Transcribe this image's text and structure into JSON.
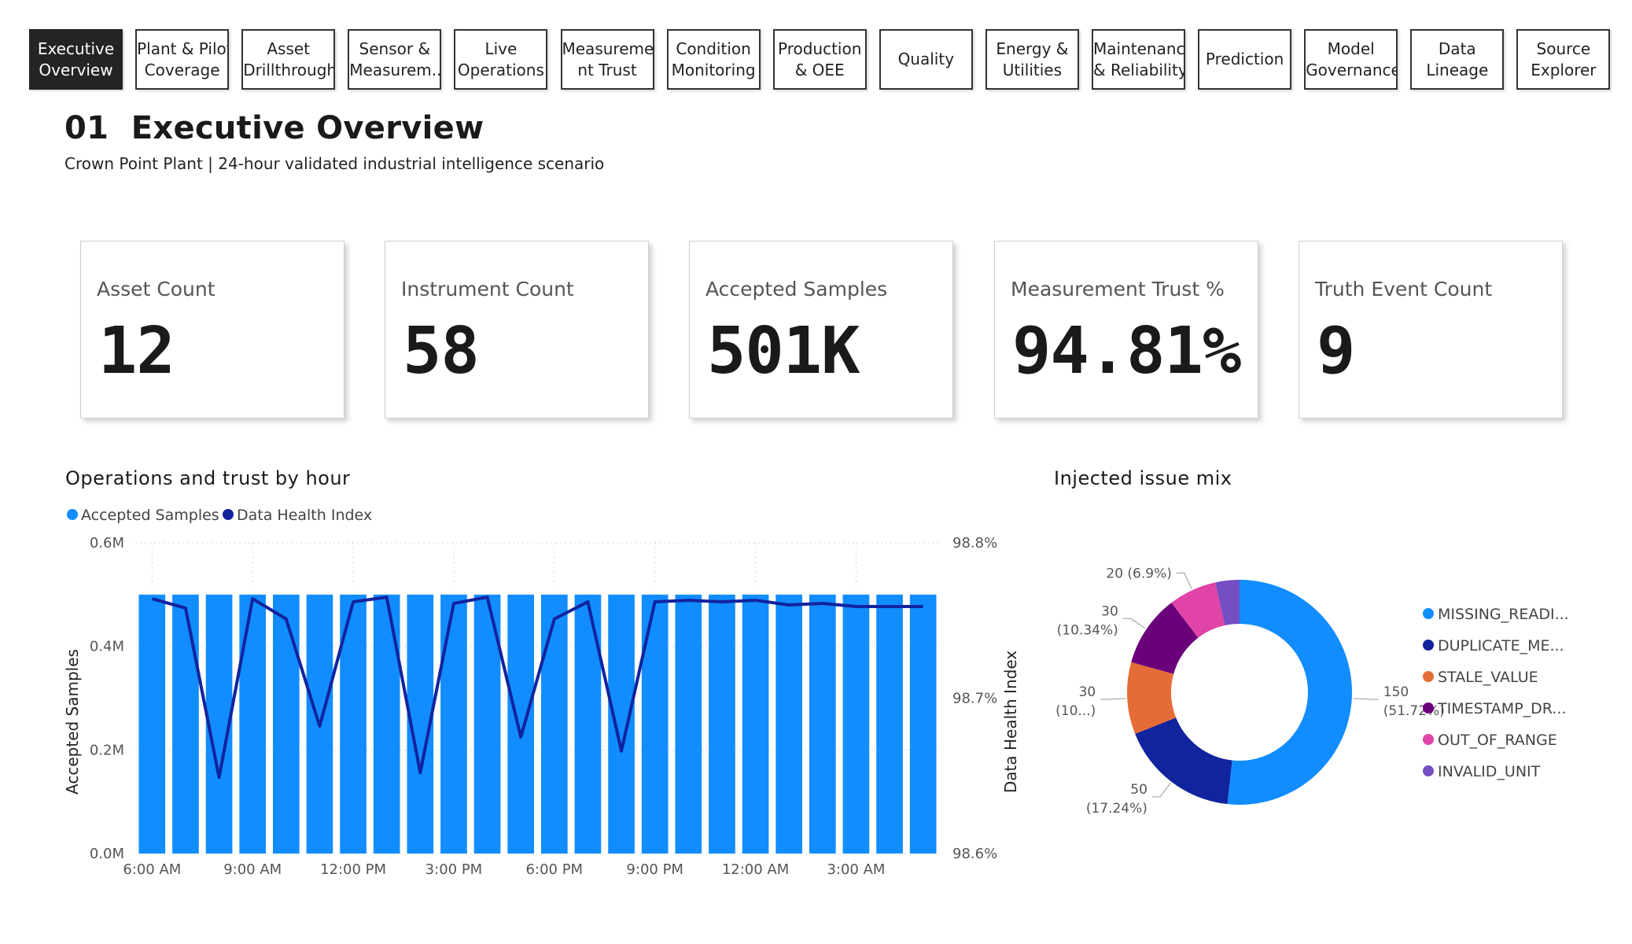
{
  "nav": {
    "tabs": [
      {
        "label": "Executive Overview",
        "lines": [
          "Executive",
          "Overview"
        ],
        "active": true
      },
      {
        "label": "Plant & Pilot Coverage",
        "lines": [
          "Plant & Pilot",
          "Coverage"
        ],
        "active": false
      },
      {
        "label": "Asset Drillthrough",
        "lines": [
          "Asset",
          "Drillthrough"
        ],
        "active": false
      },
      {
        "label": "Sensor & Measurem...",
        "lines": [
          "Sensor &",
          "Measurem..."
        ],
        "active": false
      },
      {
        "label": "Live Operations",
        "lines": [
          "Live",
          "Operations"
        ],
        "active": false
      },
      {
        "label": "Measurement Trust",
        "lines": [
          "Measureme",
          "nt Trust"
        ],
        "active": false
      },
      {
        "label": "Condition Monitoring",
        "lines": [
          "Condition",
          "Monitoring"
        ],
        "active": false
      },
      {
        "label": "Production & OEE",
        "lines": [
          "Production",
          "& OEE"
        ],
        "active": false
      },
      {
        "label": "Quality",
        "lines": [
          "Quality"
        ],
        "active": false
      },
      {
        "label": "Energy & Utilities",
        "lines": [
          "Energy &",
          "Utilities"
        ],
        "active": false
      },
      {
        "label": "Maintenance & Reliability",
        "lines": [
          "Maintenance",
          "& Reliability"
        ],
        "active": false
      },
      {
        "label": "Prediction",
        "lines": [
          "Prediction"
        ],
        "active": false
      },
      {
        "label": "Model Governance",
        "lines": [
          "Model",
          "Governance"
        ],
        "active": false
      },
      {
        "label": "Data Lineage",
        "lines": [
          "Data",
          "Lineage"
        ],
        "active": false
      },
      {
        "label": "Source Explorer",
        "lines": [
          "Source",
          "Explorer"
        ],
        "active": false
      }
    ]
  },
  "header": {
    "title": "01  Executive Overview",
    "subtitle": "Crown Point Plant | 24-hour validated industrial intelligence scenario"
  },
  "kpis": [
    {
      "label": "Asset Count",
      "value": "12"
    },
    {
      "label": "Instrument Count",
      "value": "58"
    },
    {
      "label": "Accepted Samples",
      "value": "501K"
    },
    {
      "label": "Measurement Trust %",
      "value": "94.81%"
    },
    {
      "label": "Truth Event Count",
      "value": "9"
    }
  ],
  "colors": {
    "bar": "#118DFF",
    "line": "#12239E",
    "missing": "#118DFF",
    "duplicate": "#12239E",
    "stale": "#E66C37",
    "timestamp": "#6B007B",
    "out_of_range": "#E044A7",
    "invalid_unit": "#744EC2"
  },
  "chart_data": [
    {
      "type": "bar",
      "title": "Operations and trust by hour",
      "legend": [
        "Accepted Samples",
        "Data Health Index"
      ],
      "legend_position": "top-left",
      "xlabel": "",
      "ylabel": "Accepted Samples",
      "y2label": "Data Health Index",
      "ylim": [
        0,
        600000
      ],
      "y2lim": [
        98.6,
        98.8
      ],
      "y_ticks": [
        "0.0M",
        "0.2M",
        "0.4M",
        "0.6M"
      ],
      "y2_ticks": [
        "98.6%",
        "98.7%",
        "98.8%"
      ],
      "x_ticks": [
        "6:00 AM",
        "9:00 AM",
        "12:00 PM",
        "3:00 PM",
        "6:00 PM",
        "9:00 PM",
        "12:00 AM",
        "3:00 AM"
      ],
      "categories": [
        "6:00 AM",
        "7:00 AM",
        "8:00 AM",
        "9:00 AM",
        "10:00 AM",
        "11:00 AM",
        "12:00 PM",
        "1:00 PM",
        "2:00 PM",
        "3:00 PM",
        "4:00 PM",
        "5:00 PM",
        "6:00 PM",
        "7:00 PM",
        "8:00 PM",
        "9:00 PM",
        "10:00 PM",
        "11:00 PM",
        "12:00 AM",
        "1:00 AM",
        "2:00 AM",
        "3:00 AM",
        "4:00 AM",
        "5:00 AM"
      ],
      "series": [
        {
          "name": "Accepted Samples",
          "type": "bar",
          "values": [
            500000,
            500000,
            500000,
            500000,
            500000,
            500000,
            500000,
            500000,
            500000,
            500000,
            500000,
            500000,
            500000,
            500000,
            500000,
            500000,
            500000,
            500000,
            500000,
            500000,
            500000,
            500000,
            500000,
            500000
          ]
        },
        {
          "name": "Data Health Index",
          "type": "line",
          "axis": "y2",
          "values": [
            98.764,
            98.758,
            98.649,
            98.764,
            98.751,
            98.682,
            98.762,
            98.765,
            98.652,
            98.761,
            98.765,
            98.675,
            98.751,
            98.762,
            98.666,
            98.762,
            98.763,
            98.762,
            98.763,
            98.76,
            98.761,
            98.759,
            98.759,
            98.759
          ]
        }
      ],
      "grid": true
    },
    {
      "type": "pie",
      "subtype": "donut",
      "title": "Injected issue mix",
      "legend_position": "right",
      "slices": [
        {
          "name": "MISSING_READI...",
          "value": 150,
          "percent": "51.72%",
          "label": [
            "150",
            "(51.72%)"
          ],
          "color_key": "missing"
        },
        {
          "name": "DUPLICATE_ME...",
          "value": 50,
          "percent": "17.24%",
          "label": [
            "50",
            "(17.24%)"
          ],
          "color_key": "duplicate"
        },
        {
          "name": "STALE_VALUE",
          "value": 30,
          "percent": "10.34%",
          "label": [
            "30",
            "(10...)"
          ],
          "color_key": "stale"
        },
        {
          "name": "TIMESTAMP_DR...",
          "value": 30,
          "percent": "10.34%",
          "label": [
            "30",
            "(10.34%)"
          ],
          "color_key": "timestamp"
        },
        {
          "name": "OUT_OF_RANGE",
          "value": 20,
          "percent": "6.9%",
          "label": [
            "20 (6.9%)"
          ],
          "color_key": "out_of_range"
        },
        {
          "name": "INVALID_UNIT",
          "value": 10,
          "percent": "",
          "label": [],
          "color_key": "invalid_unit"
        }
      ]
    }
  ]
}
